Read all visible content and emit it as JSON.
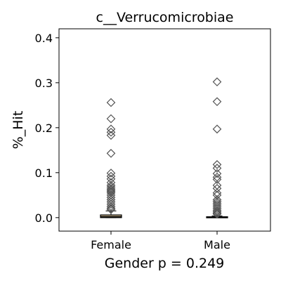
{
  "chart_data": {
    "type": "box",
    "title": "c__Verrucomicrobiae",
    "ylabel": "%_Hit",
    "xlabel": "Gender p = 0.249",
    "categories": [
      "Female",
      "Male"
    ],
    "ylim": [
      -0.03,
      0.42
    ],
    "yticks": [
      0.0,
      0.1,
      0.2,
      0.3,
      0.4
    ],
    "ytick_labels": [
      "0.0",
      "0.1",
      "0.2",
      "0.3",
      "0.4"
    ],
    "grid": false,
    "box_color": "#c9b38a",
    "outlier_color": "#555555",
    "boxes": [
      {
        "category": "Female",
        "whisker_low": 0.0,
        "q1": 0.0,
        "median": 0.002,
        "q3": 0.006,
        "whisker_high": 0.015,
        "outliers": [
          0.256,
          0.22,
          0.197,
          0.19,
          0.183,
          0.143,
          0.099,
          0.092,
          0.086,
          0.078,
          0.072,
          0.068,
          0.064,
          0.061,
          0.058,
          0.055,
          0.05,
          0.045,
          0.04,
          0.035,
          0.03,
          0.025,
          0.021,
          0.018
        ]
      },
      {
        "category": "Male",
        "whisker_low": 0.0,
        "q1": 0.0,
        "median": 0.001,
        "q3": 0.002,
        "whisker_high": 0.004,
        "outliers": [
          0.302,
          0.258,
          0.197,
          0.118,
          0.11,
          0.098,
          0.09,
          0.085,
          0.072,
          0.065,
          0.055,
          0.05,
          0.04,
          0.036,
          0.032,
          0.028,
          0.024,
          0.02,
          0.016,
          0.013,
          0.01,
          0.008
        ]
      }
    ]
  }
}
